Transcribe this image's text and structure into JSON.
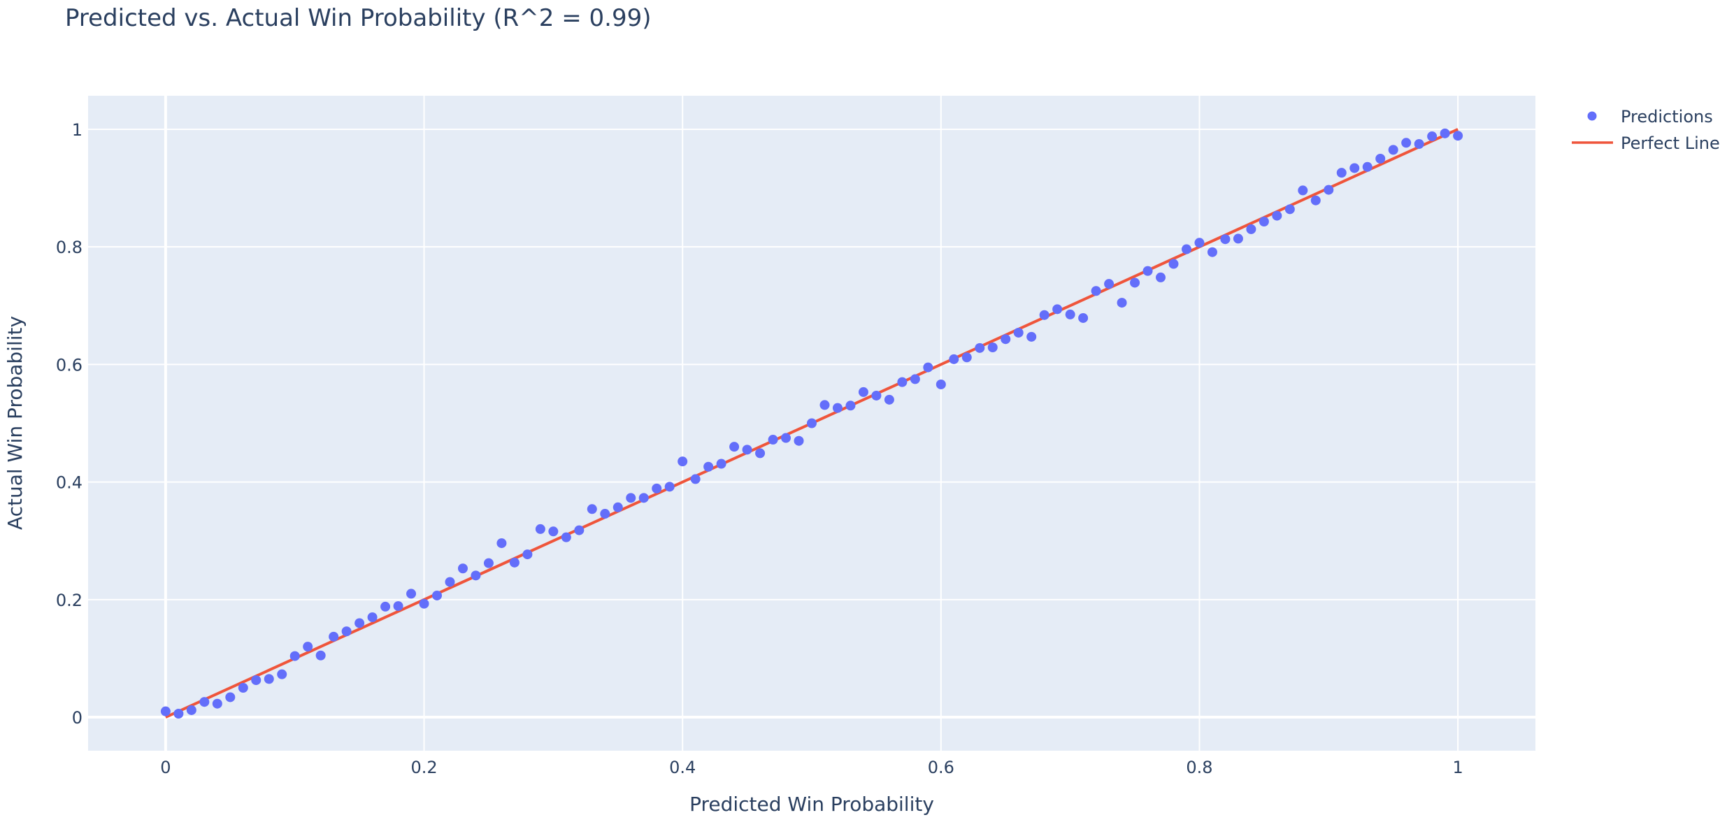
{
  "chart_data": {
    "type": "scatter",
    "title": "Predicted vs. Actual Win Probability (R^2 = 0.99)",
    "xlabel": "Predicted Win Probability",
    "ylabel": "Actual Win Probability",
    "xlim": [
      -0.06,
      1.06
    ],
    "ylim": [
      -0.057,
      1.057
    ],
    "x_ticks": [
      0,
      0.2,
      0.4,
      0.6,
      0.8,
      1
    ],
    "x_tick_labels": [
      "0",
      "0.2",
      "0.4",
      "0.6",
      "0.8",
      "1"
    ],
    "y_ticks": [
      0,
      0.2,
      0.4,
      0.6,
      0.8,
      1
    ],
    "y_tick_labels": [
      "0",
      "0.2",
      "0.4",
      "0.6",
      "0.8",
      "1"
    ],
    "grid": true,
    "legend_position": "top-right",
    "series": [
      {
        "name": "Predictions",
        "mode": "markers",
        "color": "#636efa",
        "x": [
          0,
          0.01,
          0.02,
          0.03,
          0.04,
          0.05,
          0.06,
          0.07,
          0.08,
          0.09,
          0.1,
          0.11,
          0.12,
          0.13,
          0.14,
          0.15,
          0.16,
          0.17,
          0.18,
          0.19,
          0.2,
          0.21,
          0.22,
          0.23,
          0.24,
          0.25,
          0.26,
          0.27,
          0.28,
          0.29,
          0.3,
          0.31,
          0.32,
          0.33,
          0.34,
          0.35,
          0.36,
          0.37,
          0.38,
          0.39,
          0.4,
          0.41,
          0.42,
          0.43,
          0.44,
          0.45,
          0.46,
          0.47,
          0.48,
          0.49,
          0.5,
          0.51,
          0.52,
          0.53,
          0.54,
          0.55,
          0.56,
          0.57,
          0.58,
          0.59,
          0.6,
          0.61,
          0.62,
          0.63,
          0.64,
          0.65,
          0.66,
          0.67,
          0.68,
          0.69,
          0.7,
          0.71,
          0.72,
          0.73,
          0.74,
          0.75,
          0.76,
          0.77,
          0.78,
          0.79,
          0.8,
          0.81,
          0.82,
          0.83,
          0.84,
          0.85,
          0.86,
          0.87,
          0.88,
          0.89,
          0.9,
          0.91,
          0.92,
          0.93,
          0.94,
          0.95,
          0.96,
          0.97,
          0.98,
          0.99,
          1
        ],
        "y": [
          0.01,
          0.006,
          0.012,
          0.026,
          0.023,
          0.034,
          0.05,
          0.063,
          0.065,
          0.073,
          0.104,
          0.12,
          0.105,
          0.137,
          0.146,
          0.16,
          0.17,
          0.188,
          0.189,
          0.21,
          0.193,
          0.207,
          0.23,
          0.253,
          0.241,
          0.262,
          0.296,
          0.263,
          0.277,
          0.32,
          0.316,
          0.306,
          0.318,
          0.354,
          0.346,
          0.357,
          0.373,
          0.373,
          0.389,
          0.392,
          0.435,
          0.405,
          0.426,
          0.431,
          0.46,
          0.455,
          0.449,
          0.472,
          0.475,
          0.47,
          0.5,
          0.531,
          0.526,
          0.53,
          0.553,
          0.547,
          0.54,
          0.57,
          0.575,
          0.595,
          0.566,
          0.609,
          0.612,
          0.628,
          0.629,
          0.643,
          0.654,
          0.647,
          0.684,
          0.694,
          0.685,
          0.679,
          0.725,
          0.737,
          0.705,
          0.739,
          0.759,
          0.748,
          0.771,
          0.796,
          0.807,
          0.791,
          0.813,
          0.814,
          0.83,
          0.843,
          0.853,
          0.864,
          0.896,
          0.879,
          0.897,
          0.926,
          0.934,
          0.936,
          0.95,
          0.965,
          0.977,
          0.975,
          0.988,
          0.993,
          0.989
        ]
      },
      {
        "name": "Perfect Line",
        "mode": "lines",
        "color": "#ef553b",
        "x": [
          0,
          1
        ],
        "y": [
          0,
          1
        ]
      }
    ]
  }
}
